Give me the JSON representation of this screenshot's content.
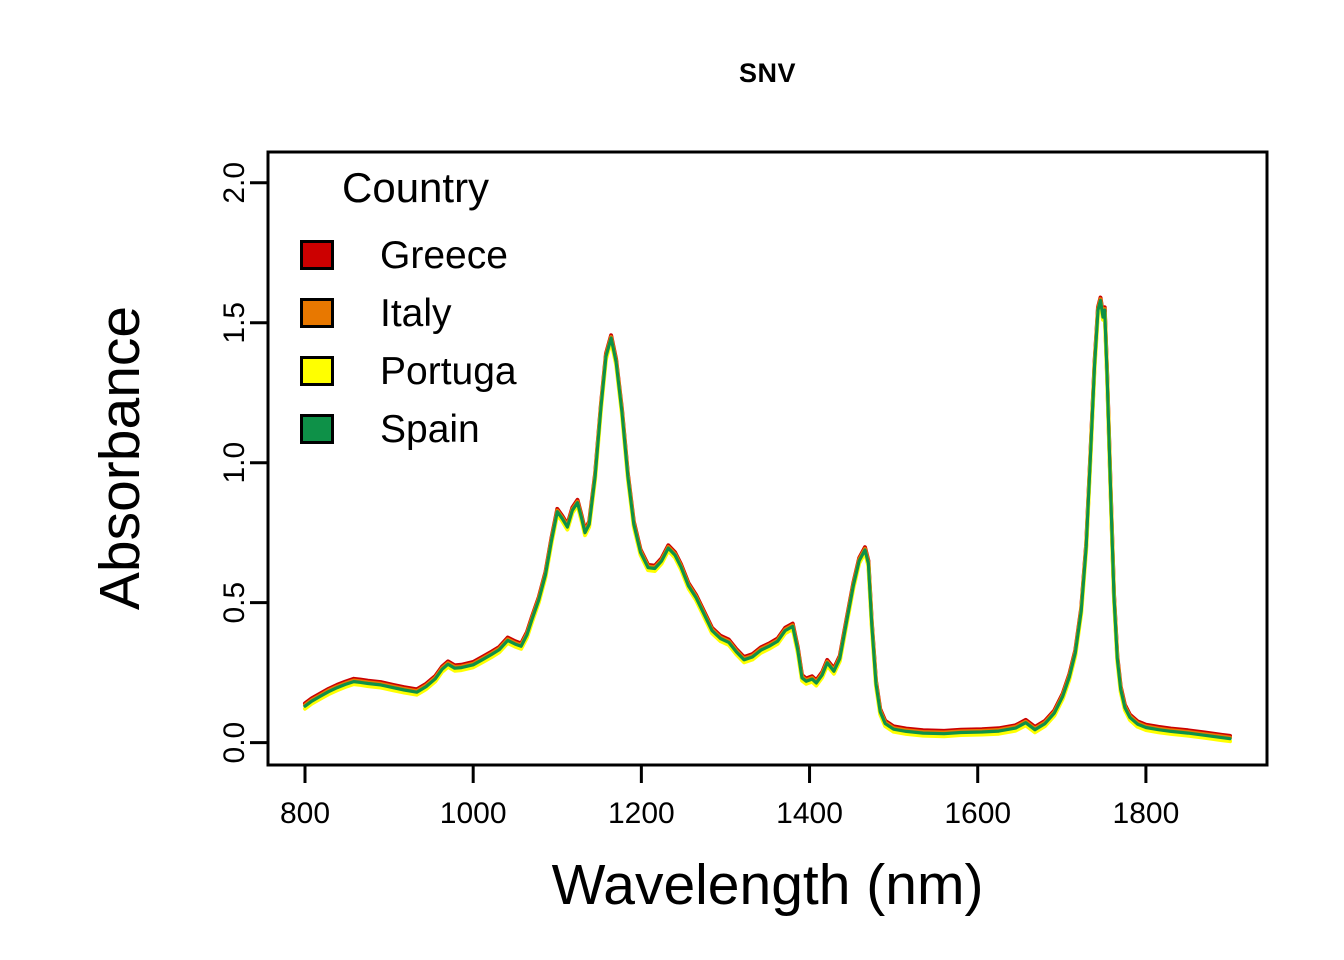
{
  "title": "SNV",
  "chart_data": {
    "type": "line",
    "title": "SNV",
    "xlabel": "Wavelength (nm)",
    "ylabel": "Absorbance",
    "xlim": [
      756,
      1944
    ],
    "ylim": [
      -0.08,
      2.11
    ],
    "x_ticks": [
      800,
      1000,
      1200,
      1400,
      1600,
      1800
    ],
    "x_tick_labels": [
      "800",
      "1000",
      "1200",
      "1400",
      "1600",
      "1800"
    ],
    "y_ticks": [
      0.0,
      0.5,
      1.0,
      1.5,
      2.0
    ],
    "y_tick_labels": [
      "0.0",
      "0.5",
      "1.0",
      "1.5",
      "2.0"
    ],
    "grid": false,
    "legend": {
      "title": "Country",
      "position": "top-left",
      "entries": [
        {
          "label": "Greece",
          "color": "#CC0000"
        },
        {
          "label": "Italy",
          "color": "#E87800"
        },
        {
          "label": "Portuga",
          "color": "#FFFF00"
        },
        {
          "label": "Spain",
          "color": "#0E9148"
        }
      ]
    },
    "series": [
      {
        "name": "Greece",
        "color": "#CC0000",
        "offset": 0.01,
        "width": 4.0
      },
      {
        "name": "Italy",
        "color": "#E87800",
        "offset": 0.004,
        "width": 4.0
      },
      {
        "name": "Portuga",
        "color": "#FFFF00",
        "offset": -0.009,
        "width": 4.0
      },
      {
        "name": "Spain",
        "color": "#0E9148",
        "offset": 0.0,
        "width": 3.2
      }
    ],
    "points": [
      [
        800,
        0.13
      ],
      [
        808,
        0.148
      ],
      [
        818,
        0.165
      ],
      [
        828,
        0.182
      ],
      [
        838,
        0.196
      ],
      [
        848,
        0.208
      ],
      [
        858,
        0.218
      ],
      [
        866,
        0.215
      ],
      [
        875,
        0.211
      ],
      [
        890,
        0.206
      ],
      [
        905,
        0.196
      ],
      [
        918,
        0.188
      ],
      [
        933,
        0.18
      ],
      [
        944,
        0.2
      ],
      [
        955,
        0.228
      ],
      [
        963,
        0.262
      ],
      [
        970,
        0.28
      ],
      [
        978,
        0.266
      ],
      [
        986,
        0.268
      ],
      [
        1000,
        0.278
      ],
      [
        1012,
        0.298
      ],
      [
        1022,
        0.315
      ],
      [
        1031,
        0.332
      ],
      [
        1041,
        0.365
      ],
      [
        1050,
        0.352
      ],
      [
        1057,
        0.344
      ],
      [
        1064,
        0.385
      ],
      [
        1070,
        0.44
      ],
      [
        1078,
        0.51
      ],
      [
        1086,
        0.6
      ],
      [
        1093,
        0.72
      ],
      [
        1100,
        0.825
      ],
      [
        1106,
        0.8
      ],
      [
        1112,
        0.77
      ],
      [
        1118,
        0.83
      ],
      [
        1124,
        0.857
      ],
      [
        1129,
        0.8
      ],
      [
        1133,
        0.75
      ],
      [
        1138,
        0.78
      ],
      [
        1145,
        0.95
      ],
      [
        1152,
        1.2
      ],
      [
        1158,
        1.38
      ],
      [
        1164,
        1.445
      ],
      [
        1170,
        1.36
      ],
      [
        1177,
        1.18
      ],
      [
        1184,
        0.95
      ],
      [
        1191,
        0.78
      ],
      [
        1199,
        0.68
      ],
      [
        1208,
        0.625
      ],
      [
        1216,
        0.622
      ],
      [
        1224,
        0.648
      ],
      [
        1232,
        0.695
      ],
      [
        1240,
        0.67
      ],
      [
        1247,
        0.628
      ],
      [
        1256,
        0.56
      ],
      [
        1265,
        0.518
      ],
      [
        1273,
        0.468
      ],
      [
        1284,
        0.4
      ],
      [
        1294,
        0.372
      ],
      [
        1304,
        0.358
      ],
      [
        1313,
        0.324
      ],
      [
        1322,
        0.296
      ],
      [
        1332,
        0.306
      ],
      [
        1342,
        0.33
      ],
      [
        1353,
        0.346
      ],
      [
        1362,
        0.362
      ],
      [
        1371,
        0.4
      ],
      [
        1380,
        0.415
      ],
      [
        1386,
        0.33
      ],
      [
        1391,
        0.231
      ],
      [
        1396,
        0.219
      ],
      [
        1403,
        0.227
      ],
      [
        1408,
        0.213
      ],
      [
        1415,
        0.242
      ],
      [
        1421,
        0.285
      ],
      [
        1429,
        0.255
      ],
      [
        1436,
        0.3
      ],
      [
        1444,
        0.43
      ],
      [
        1452,
        0.56
      ],
      [
        1459,
        0.65
      ],
      [
        1466,
        0.688
      ],
      [
        1470,
        0.64
      ],
      [
        1474,
        0.42
      ],
      [
        1479,
        0.21
      ],
      [
        1484,
        0.11
      ],
      [
        1490,
        0.068
      ],
      [
        1500,
        0.048
      ],
      [
        1515,
        0.04
      ],
      [
        1535,
        0.034
      ],
      [
        1560,
        0.032
      ],
      [
        1580,
        0.036
      ],
      [
        1605,
        0.038
      ],
      [
        1625,
        0.041
      ],
      [
        1645,
        0.052
      ],
      [
        1657,
        0.071
      ],
      [
        1668,
        0.046
      ],
      [
        1680,
        0.068
      ],
      [
        1691,
        0.105
      ],
      [
        1701,
        0.165
      ],
      [
        1709,
        0.235
      ],
      [
        1716,
        0.32
      ],
      [
        1723,
        0.47
      ],
      [
        1729,
        0.7
      ],
      [
        1734,
        1.02
      ],
      [
        1739,
        1.35
      ],
      [
        1743,
        1.545
      ],
      [
        1746,
        1.58
      ],
      [
        1749,
        1.52
      ],
      [
        1751,
        1.545
      ],
      [
        1754,
        1.3
      ],
      [
        1758,
        0.9
      ],
      [
        1762,
        0.52
      ],
      [
        1766,
        0.3
      ],
      [
        1770,
        0.19
      ],
      [
        1775,
        0.125
      ],
      [
        1781,
        0.09
      ],
      [
        1790,
        0.066
      ],
      [
        1800,
        0.054
      ],
      [
        1815,
        0.046
      ],
      [
        1830,
        0.04
      ],
      [
        1850,
        0.034
      ],
      [
        1870,
        0.026
      ],
      [
        1890,
        0.018
      ],
      [
        1900,
        0.014
      ]
    ]
  }
}
